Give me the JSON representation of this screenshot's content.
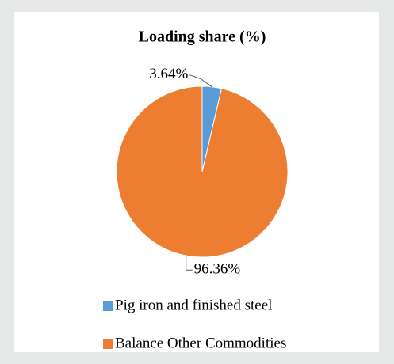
{
  "chart_data": {
    "type": "pie",
    "title": "Loading share (%)",
    "categories": [
      "Pig iron and finished steel",
      "Balance Other Commodities"
    ],
    "values": [
      3.64,
      96.36
    ],
    "value_labels": [
      "3.64%",
      "96.36%"
    ],
    "colors": [
      "#5b9bd5",
      "#ed7d31"
    ],
    "legend": "bottom"
  }
}
